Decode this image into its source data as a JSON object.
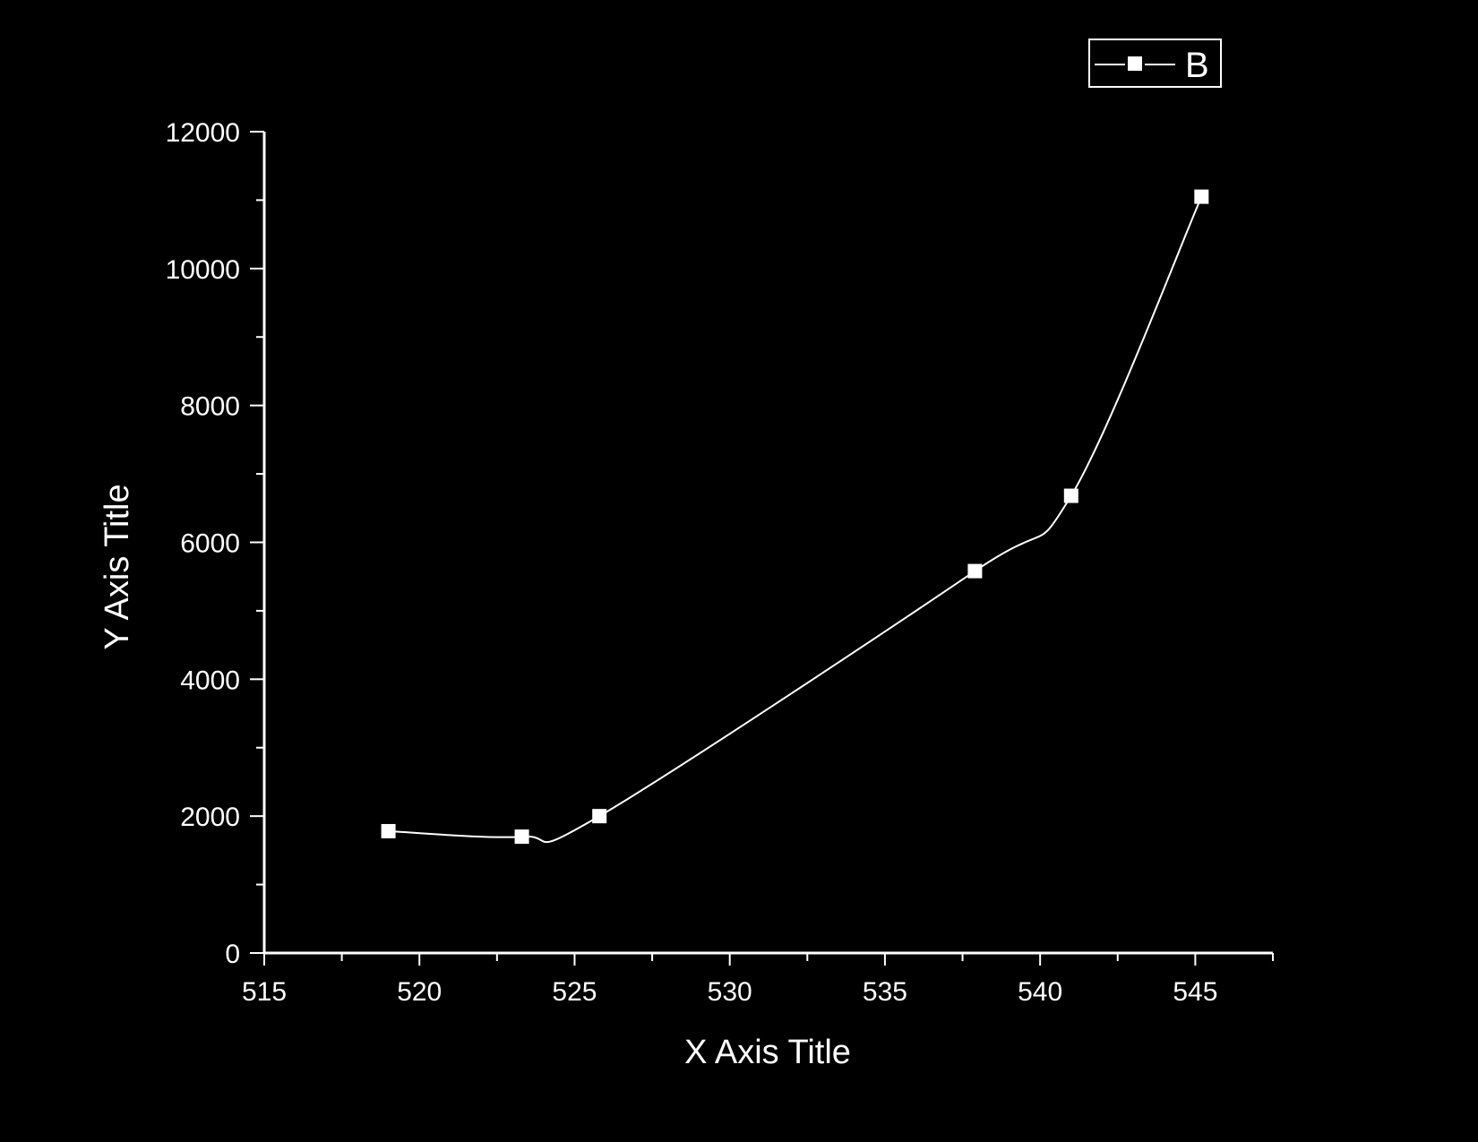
{
  "colors": {
    "background": "#000000",
    "foreground": "#ffffff"
  },
  "chart_data": {
    "type": "line",
    "title": "",
    "xlabel": "X Axis Title",
    "ylabel": "Y Axis Title",
    "xlim": [
      515,
      547.5
    ],
    "ylim": [
      0,
      12000
    ],
    "x_ticks": [
      515,
      520,
      525,
      530,
      535,
      540,
      545
    ],
    "y_ticks": [
      0,
      2000,
      4000,
      6000,
      8000,
      10000,
      12000
    ],
    "x_minor_ticks": [
      517.5,
      522.5,
      527.5,
      532.5,
      537.5,
      542.5,
      547.5
    ],
    "y_minor_ticks": [
      1000,
      3000,
      5000,
      7000,
      9000,
      11000
    ],
    "grid": false,
    "legend_position": "top-right",
    "series": [
      {
        "name": "B",
        "marker": "square",
        "line": "smooth",
        "x": [
          519,
          523.3,
          525.8,
          537.9,
          541,
          545.2
        ],
        "y": [
          1780,
          1700,
          2000,
          5580,
          6680,
          11050
        ]
      }
    ]
  }
}
